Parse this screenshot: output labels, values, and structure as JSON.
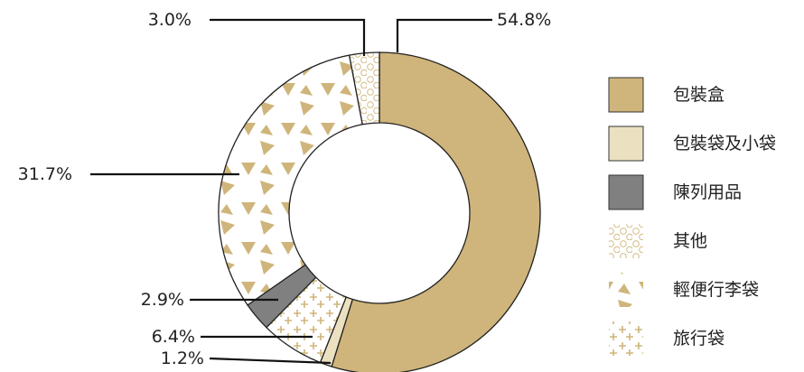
{
  "chart_data": {
    "type": "pie",
    "style": "donut",
    "slices": [
      {
        "label": "包裝盒",
        "value": 54.8,
        "label_text": "54.8%",
        "fill": "#cfb57b",
        "pattern": "solid"
      },
      {
        "label": "包裝袋及小袋",
        "value": 1.2,
        "label_text": "1.2%",
        "fill": "#ebe0c0",
        "pattern": "solid"
      },
      {
        "label": "旅行袋",
        "value": 6.4,
        "label_text": "6.4%",
        "fill": "#ffffff",
        "pattern": "crosses"
      },
      {
        "label": "陳列用品",
        "value": 2.9,
        "label_text": "2.9%",
        "fill": "#808080",
        "pattern": "solid"
      },
      {
        "label": "輕便行李袋",
        "value": 31.7,
        "label_text": "31.7%",
        "fill": "#ffffff",
        "pattern": "triangles"
      },
      {
        "label": "其他",
        "value": 3.0,
        "label_text": "3.0%",
        "fill": "#ffffff",
        "pattern": "circles"
      }
    ],
    "legend_order": [
      "包裝盒",
      "包裝袋及小袋",
      "陳列用品",
      "其他",
      "輕便行李袋",
      "旅行袋"
    ],
    "legend_position": "right",
    "pattern_color": "#cfb57b"
  }
}
